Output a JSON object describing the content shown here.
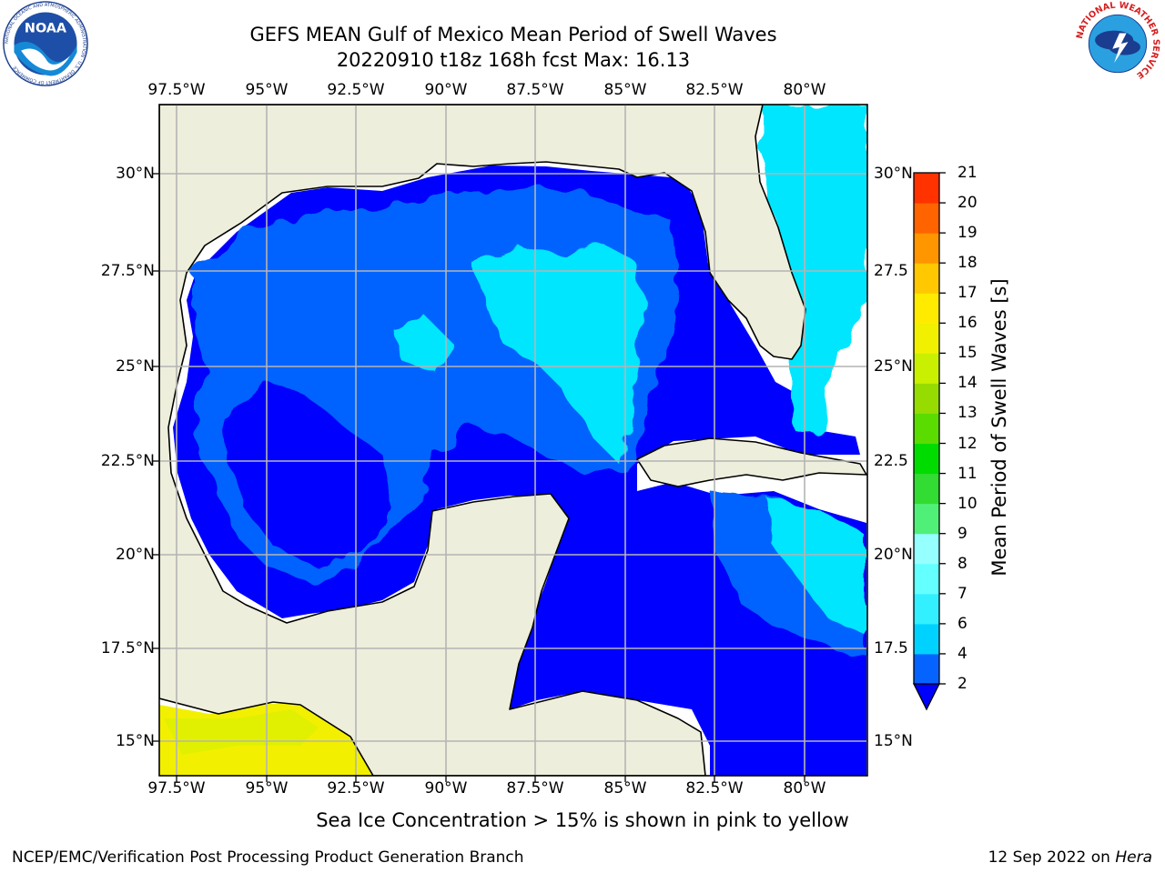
{
  "header": {
    "title": "GEFS MEAN Gulf of Mexico Mean Period of Swell Waves",
    "subtitle": "20220910 t18z 168h fcst   Max: 16.13"
  },
  "logos": {
    "left": {
      "name": "NOAA",
      "ring_text": "NATIONAL OCEANIC AND ATMOSPHERIC ADMINISTRATION · U.S. DEPARTMENT OF COMMERCE"
    },
    "right": {
      "name": "National Weather Service",
      "ring_text": "NATIONAL WEATHER SERVICE"
    }
  },
  "map": {
    "lon_ticks": [
      "97.5°W",
      "95°W",
      "92.5°W",
      "90°W",
      "87.5°W",
      "85°W",
      "82.5°W",
      "80°W"
    ],
    "lat_ticks_left": [
      "30°N",
      "27.5°N",
      "25°N",
      "22.5°N",
      "20°N",
      "17.5°N",
      "15°N"
    ],
    "lat_ticks_right": [
      "30°N",
      "27.5",
      "25°N",
      "22.5",
      "20°N",
      "17.5",
      "15°N"
    ],
    "lon_range": [
      -98,
      -78.2
    ],
    "lat_range": [
      14,
      31.8
    ],
    "land_color": "#eeeedc",
    "grid": true
  },
  "colorbar": {
    "label": "Mean Period of Swell Waves [s]",
    "ticks": [
      "2",
      "4",
      "6",
      "7",
      "8",
      "9",
      "10",
      "11",
      "12",
      "13",
      "14",
      "15",
      "16",
      "17",
      "18",
      "19",
      "20",
      "21"
    ],
    "colors": [
      "#0564ff",
      "#00d2ff",
      "#32f0ff",
      "#64ffff",
      "#96ffff",
      "#50f078",
      "#32dc32",
      "#00dc00",
      "#5adc00",
      "#96dc00",
      "#c8f000",
      "#f0f000",
      "#ffeb00",
      "#ffc800",
      "#ff9600",
      "#ff6400",
      "#ff3200",
      "#ff0000"
    ],
    "extend_color": "#0000ff"
  },
  "ice_note": "Sea Ice Concentration > 15% is shown in pink to yellow",
  "footer": {
    "left": "NCEP/EMC/Verification Post Processing Product Generation Branch",
    "right_prefix": "12 Sep 2022 on ",
    "right_machine": "Hera"
  }
}
